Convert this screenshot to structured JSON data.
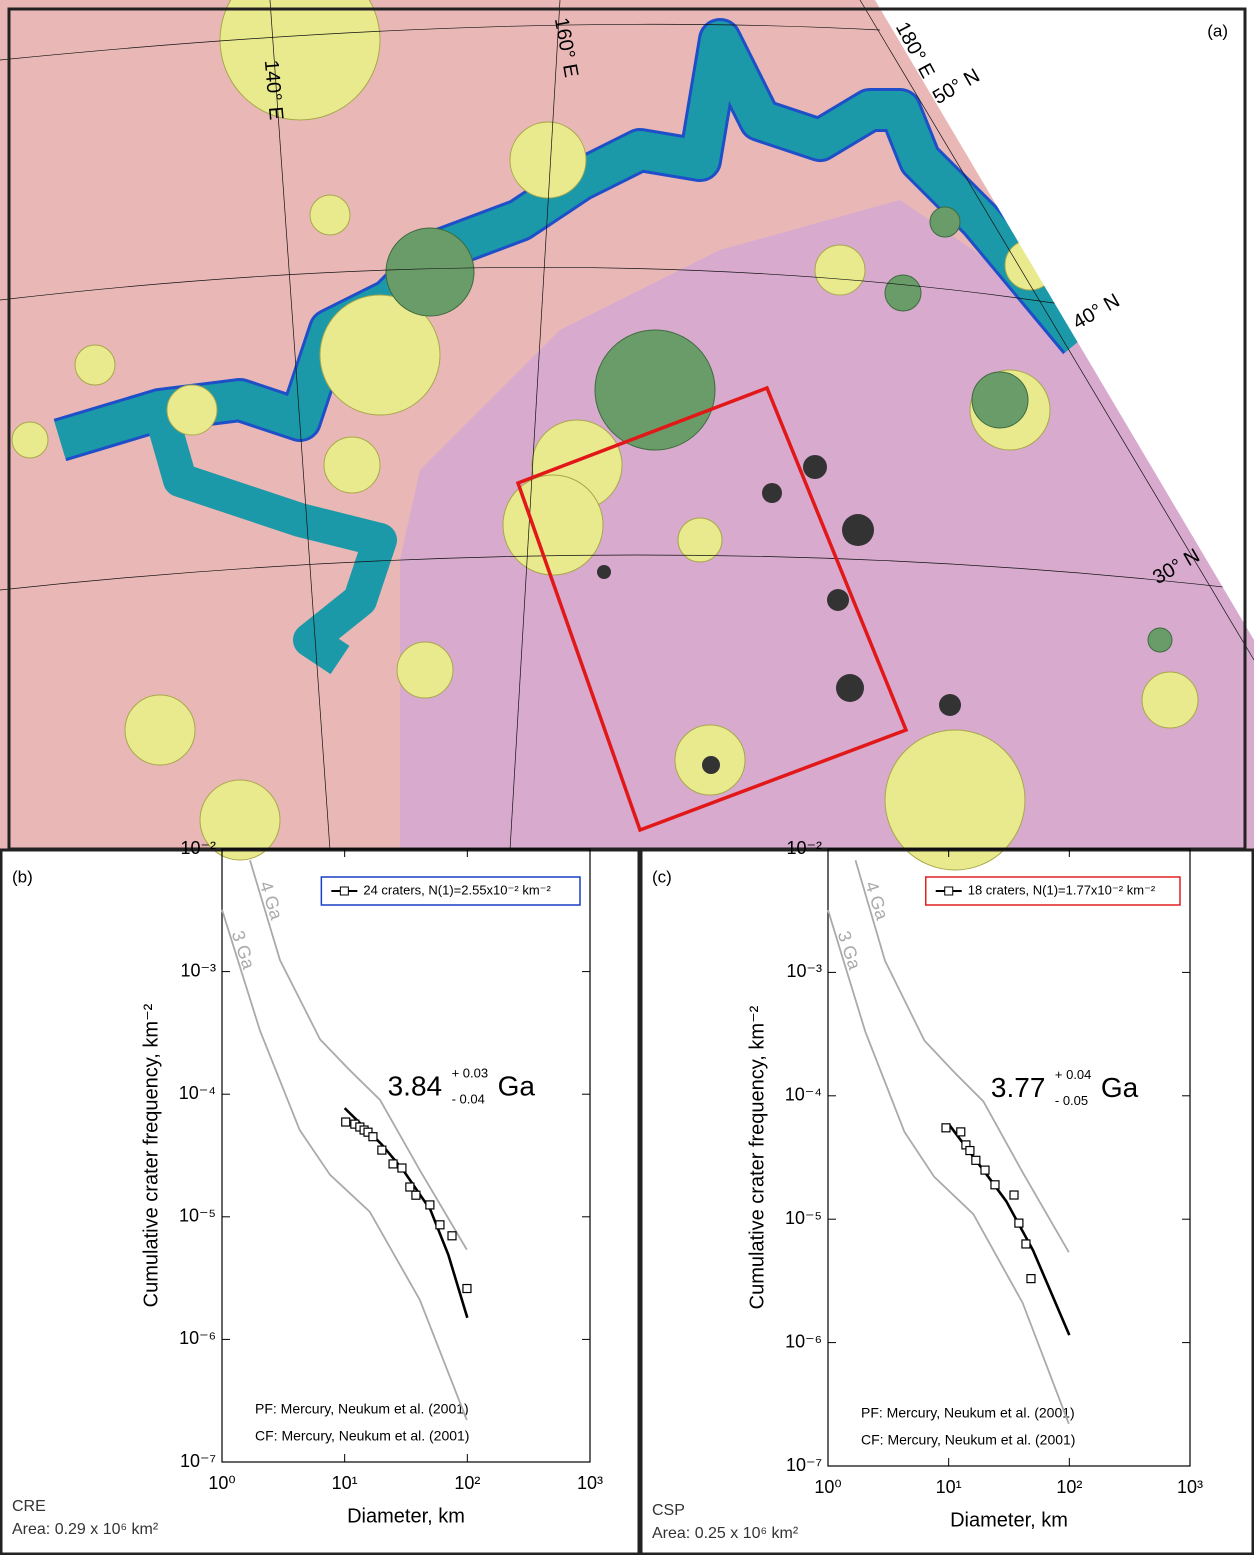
{
  "map": {
    "panel_label": "(a)",
    "lon_labels": [
      "140° E",
      "160° E",
      "180° E"
    ],
    "lat_labels": [
      "50° N",
      "40° N",
      "30° N"
    ]
  },
  "chart_data": [
    {
      "type": "scatter",
      "panel_label": "(b)",
      "xlabel": "Diameter, km",
      "ylabel": "Cumulative crater frequency, km⁻²",
      "log_x": true,
      "log_y": true,
      "xlim": [
        1,
        1000
      ],
      "ylim": [
        1e-07,
        0.01
      ],
      "xticks": [
        {
          "value": 1,
          "label": "10⁰"
        },
        {
          "value": 10,
          "label": "10¹"
        },
        {
          "value": 100,
          "label": "10²"
        },
        {
          "value": 1000,
          "label": "10³"
        }
      ],
      "yticks": [
        {
          "value": 1e-07,
          "label": "10⁻⁷"
        },
        {
          "value": 1e-06,
          "label": "10⁻⁶"
        },
        {
          "value": 1e-05,
          "label": "10⁻⁵"
        },
        {
          "value": 0.0001,
          "label": "10⁻⁴"
        },
        {
          "value": 0.001,
          "label": "10⁻³"
        },
        {
          "value": 0.01,
          "label": "10⁻²"
        }
      ],
      "legend_border_color": "#1a3fc4",
      "age": 3.84,
      "age_plus": "+ 0.03",
      "age_minus": "- 0.04",
      "age_unit": "Ga",
      "notes": [
        "PF: Mercury, Neukum et al. (2001)",
        "CF: Mercury, Neukum et al. (2001)"
      ],
      "unit": "CRE",
      "area": "Area: 0.29 x 10⁶ km²",
      "series": [
        {
          "name": "4 Ga",
          "color": "#aaaaaa",
          "mode": "lines",
          "x": [
            1.69,
            2.97,
            6.3,
            11,
            19.4,
            41,
            99
          ],
          "values": [
            0.0081,
            0.00124,
            0.00028,
            0.000157,
            9e-05,
            2.4e-05,
            5.4e-06
          ]
        },
        {
          "name": "3 Ga",
          "color": "#aaaaaa",
          "mode": "lines",
          "x": [
            1,
            2.04,
            4.3,
            7.6,
            16,
            41,
            99
          ],
          "values": [
            0.0032,
            0.00033,
            5.1e-05,
            2.2e-05,
            1.1e-05,
            2.1e-06,
            2.2e-07
          ]
        },
        {
          "color": "#000000",
          "mode": "lines",
          "x": [
            10,
            20,
            30,
            50,
            70,
            100
          ],
          "values": [
            7.7e-05,
            3.9e-05,
            2.4e-05,
            1.14e-05,
            4.9e-06,
            1.5e-06
          ]
        },
        {
          "name": "24 craters, N(1)=2.55x10⁻² km⁻²",
          "color": "#000000",
          "mode": "markers",
          "x": [
            10.2,
            12.1,
            13.3,
            14.4,
            15.5,
            17,
            20.1,
            24.8,
            29.3,
            34,
            38.1,
            49.5,
            59.8,
            75,
            99.3
          ],
          "values": [
            5.93e-05,
            5.7e-05,
            5.4e-05,
            5.1e-05,
            4.9e-05,
            4.5e-05,
            3.5e-05,
            2.7e-05,
            2.5e-05,
            1.75e-05,
            1.5e-05,
            1.25e-05,
            8.6e-06,
            7e-06,
            2.6e-06
          ]
        }
      ]
    },
    {
      "type": "scatter",
      "panel_label": "(c)",
      "xlabel": "Diameter, km",
      "ylabel": "Cumulative crater frequency, km⁻²",
      "log_x": true,
      "log_y": true,
      "xlim": [
        1,
        1000
      ],
      "ylim": [
        1e-07,
        0.01
      ],
      "xticks": [
        {
          "value": 1,
          "label": "10⁰"
        },
        {
          "value": 10,
          "label": "10¹"
        },
        {
          "value": 100,
          "label": "10²"
        },
        {
          "value": 1000,
          "label": "10³"
        }
      ],
      "yticks": [
        {
          "value": 1e-07,
          "label": "10⁻⁷"
        },
        {
          "value": 1e-06,
          "label": "10⁻⁶"
        },
        {
          "value": 1e-05,
          "label": "10⁻⁵"
        },
        {
          "value": 0.0001,
          "label": "10⁻⁴"
        },
        {
          "value": 0.001,
          "label": "10⁻³"
        },
        {
          "value": 0.01,
          "label": "10⁻²"
        }
      ],
      "legend_border_color": "#e02020",
      "age": 3.77,
      "age_plus": "+ 0.04",
      "age_minus": "- 0.05",
      "age_unit": "Ga",
      "notes": [
        "PF: Mercury, Neukum et al. (2001)",
        "CF: Mercury, Neukum et al. (2001)"
      ],
      "unit": "CSP",
      "area": "Area: 0.25 x 10⁶ km²",
      "series": [
        {
          "name": "4 Ga",
          "color": "#aaaaaa",
          "mode": "lines",
          "x": [
            1.69,
            2.97,
            6.3,
            11,
            19.4,
            41,
            99
          ],
          "values": [
            0.0081,
            0.00124,
            0.00028,
            0.000157,
            9e-05,
            2.4e-05,
            5.4e-06
          ]
        },
        {
          "name": "3 Ga",
          "color": "#aaaaaa",
          "mode": "lines",
          "x": [
            1,
            2.04,
            4.3,
            7.6,
            16,
            41,
            99
          ],
          "values": [
            0.0032,
            0.00033,
            5.1e-05,
            2.2e-05,
            1.1e-05,
            2.1e-06,
            2.2e-07
          ]
        },
        {
          "color": "#000000",
          "mode": "lines",
          "x": [
            10,
            20,
            30,
            50,
            100
          ],
          "values": [
            5.9e-05,
            2.4e-05,
            1.4e-05,
            5.6e-06,
            1.15e-06
          ]
        },
        {
          "name": "18 craters, N(1)=1.77x10⁻² km⁻²",
          "color": "#000000",
          "mode": "markers",
          "x": [
            9.5,
            12.6,
            13.9,
            15,
            16.8,
            20,
            24.2,
            34.8,
            38.2,
            43.7,
            48.1
          ],
          "values": [
            5.5e-05,
            5.1e-05,
            4e-05,
            3.6e-05,
            3e-05,
            2.5e-05,
            1.9e-05,
            1.57e-05,
            9.3e-06,
            6.3e-06,
            3.3e-06
          ]
        }
      ]
    }
  ]
}
